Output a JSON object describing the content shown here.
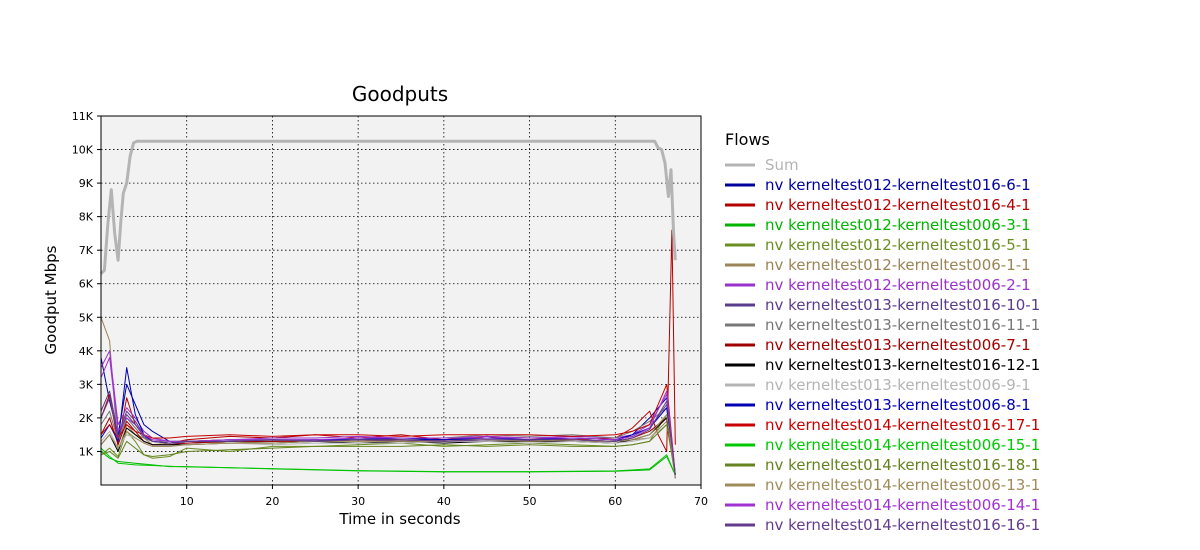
{
  "chart_data": {
    "type": "line",
    "title": "Goodputs",
    "xlabel": "Time in seconds",
    "ylabel": "Goodput Mbps",
    "xlim": [
      0,
      70
    ],
    "ylim": [
      0,
      11000
    ],
    "xticks": [
      10,
      20,
      30,
      40,
      50,
      60,
      70
    ],
    "yticks": [
      {
        "value": 1000,
        "label": "1K"
      },
      {
        "value": 2000,
        "label": "2K"
      },
      {
        "value": 3000,
        "label": "3K"
      },
      {
        "value": 4000,
        "label": "4K"
      },
      {
        "value": 5000,
        "label": "5K"
      },
      {
        "value": 6000,
        "label": "6K"
      },
      {
        "value": 7000,
        "label": "7K"
      },
      {
        "value": 8000,
        "label": "8K"
      },
      {
        "value": 9000,
        "label": "9K"
      },
      {
        "value": 10000,
        "label": "10K"
      },
      {
        "value": 11000,
        "label": "11K"
      }
    ],
    "grid": true,
    "legend_title": "Flows",
    "legend_position": "right",
    "series": [
      {
        "name": "Sum",
        "color": "#b4b4b4",
        "x": [
          0,
          0.4,
          0.8,
          1.2,
          1.6,
          2.0,
          2.3,
          2.6,
          3.0,
          3.4,
          3.8,
          4.2,
          5,
          10,
          20,
          30,
          40,
          50,
          60,
          63,
          64.6,
          65,
          65.4,
          65.8,
          66.2,
          66.5,
          66.8,
          67
        ],
        "y": [
          6300,
          6400,
          7800,
          8800,
          7500,
          6700,
          7800,
          8700,
          9000,
          9800,
          10200,
          10250,
          10250,
          10250,
          10250,
          10250,
          10250,
          10250,
          10250,
          10250,
          10250,
          10050,
          10000,
          9600,
          8600,
          9400,
          7500,
          6700
        ]
      },
      {
        "name": "nv kerneltest012-kerneltest016-6-1",
        "color": "#00009e",
        "x": [
          0,
          1,
          2,
          3,
          4,
          5,
          6,
          8,
          10,
          15,
          20,
          25,
          30,
          35,
          40,
          45,
          50,
          55,
          60,
          62,
          64,
          66,
          67
        ],
        "y": [
          3800,
          2500,
          1500,
          3000,
          2400,
          1800,
          1600,
          1300,
          1300,
          1350,
          1350,
          1300,
          1400,
          1350,
          1350,
          1450,
          1300,
          1350,
          1300,
          1500,
          2000,
          2600,
          200
        ]
      },
      {
        "name": "nv kerneltest012-kerneltest016-4-1",
        "color": "#b40000",
        "x": [
          0,
          1,
          2,
          3,
          4,
          5,
          6,
          8,
          10,
          15,
          20,
          25,
          30,
          35,
          40,
          45,
          50,
          55,
          60,
          62,
          64,
          65,
          66,
          66.6,
          67
        ],
        "y": [
          2000,
          2700,
          1200,
          2600,
          1800,
          1500,
          1300,
          1250,
          1350,
          1450,
          1400,
          1500,
          1400,
          1500,
          1350,
          1450,
          1400,
          1350,
          1400,
          1700,
          2200,
          1500,
          1000,
          7600,
          1200
        ]
      },
      {
        "name": "nv kerneltest012-kerneltest006-3-1",
        "color": "#00b400",
        "x": [
          0,
          1,
          2,
          4,
          6,
          8,
          10,
          20,
          30,
          40,
          50,
          60,
          64,
          66,
          67
        ],
        "y": [
          1000,
          800,
          700,
          650,
          600,
          550,
          550,
          480,
          420,
          390,
          390,
          410,
          450,
          850,
          300
        ]
      },
      {
        "name": "nv kerneltest012-kerneltest016-5-1",
        "color": "#6b8e23",
        "x": [
          0,
          1,
          2,
          3,
          4,
          5,
          6,
          8,
          10,
          15,
          20,
          25,
          30,
          35,
          40,
          45,
          50,
          55,
          60,
          62,
          64,
          66,
          67
        ],
        "y": [
          900,
          1100,
          850,
          1600,
          1300,
          900,
          800,
          850,
          1100,
          1000,
          1150,
          1150,
          1200,
          1250,
          1150,
          1200,
          1250,
          1200,
          1150,
          1200,
          1300,
          2100,
          300
        ]
      },
      {
        "name": "nv kerneltest012-kerneltest006-1-1",
        "color": "#9b8455",
        "x": [
          0,
          1,
          2,
          3,
          4,
          5,
          6,
          8,
          10,
          15,
          20,
          25,
          30,
          35,
          40,
          45,
          50,
          55,
          60,
          62,
          64,
          66,
          67
        ],
        "y": [
          5000,
          4300,
          1000,
          1800,
          1500,
          1400,
          1200,
          1250,
          1300,
          1250,
          1300,
          1350,
          1300,
          1350,
          1300,
          1400,
          1350,
          1300,
          1300,
          1350,
          1400,
          1900,
          200
        ]
      },
      {
        "name": "nv kerneltest012-kerneltest006-2-1",
        "color": "#9932cc",
        "x": [
          0,
          1,
          2,
          3,
          4,
          5,
          6,
          8,
          10,
          15,
          20,
          25,
          30,
          35,
          40,
          45,
          50,
          55,
          60,
          62,
          64,
          66,
          67
        ],
        "y": [
          3500,
          4000,
          1800,
          2300,
          2000,
          1600,
          1400,
          1300,
          1300,
          1350,
          1400,
          1400,
          1450,
          1400,
          1400,
          1450,
          1400,
          1450,
          1400,
          1500,
          1800,
          2700,
          300
        ]
      },
      {
        "name": "nv kerneltest013-kerneltest016-10-1",
        "color": "#5a3c8c",
        "x": [
          0,
          1,
          2,
          3,
          4,
          5,
          6,
          8,
          10,
          15,
          20,
          25,
          30,
          35,
          40,
          45,
          50,
          55,
          60,
          62,
          64,
          66,
          67
        ],
        "y": [
          2200,
          2800,
          1500,
          2200,
          1900,
          1500,
          1300,
          1250,
          1250,
          1300,
          1300,
          1350,
          1350,
          1300,
          1350,
          1350,
          1350,
          1400,
          1350,
          1450,
          1700,
          2400,
          300
        ]
      },
      {
        "name": "nv kerneltest013-kerneltest016-11-1",
        "color": "#787878",
        "x": [
          0,
          1,
          2,
          3,
          4,
          5,
          6,
          8,
          10,
          15,
          20,
          25,
          30,
          35,
          40,
          45,
          50,
          55,
          60,
          62,
          64,
          66,
          67
        ],
        "y": [
          1800,
          2200,
          1300,
          2000,
          1700,
          1400,
          1300,
          1300,
          1300,
          1350,
          1300,
          1350,
          1350,
          1400,
          1400,
          1500,
          1450,
          1500,
          1400,
          1600,
          1900,
          2300,
          300
        ]
      },
      {
        "name": "nv kerneltest013-kerneltest006-7-1",
        "color": "#a00000",
        "x": [
          0,
          1,
          2,
          3,
          4,
          5,
          6,
          8,
          10,
          15,
          20,
          25,
          30,
          35,
          40,
          45,
          50,
          55,
          60,
          62,
          64,
          66,
          67
        ],
        "y": [
          1500,
          2000,
          1200,
          1900,
          1600,
          1300,
          1200,
          1200,
          1250,
          1300,
          1300,
          1300,
          1350,
          1350,
          1300,
          1350,
          1300,
          1350,
          1300,
          1400,
          1600,
          2000,
          300
        ]
      },
      {
        "name": "nv kerneltest013-kerneltest016-12-1",
        "color": "#000000",
        "x": [
          0,
          1,
          2,
          3,
          4,
          5,
          6,
          8,
          10,
          15,
          20,
          25,
          30,
          35,
          40,
          45,
          50,
          55,
          60,
          62,
          64,
          66,
          67
        ],
        "y": [
          1200,
          1500,
          1000,
          1700,
          1500,
          1300,
          1200,
          1200,
          1200,
          1250,
          1250,
          1300,
          1250,
          1300,
          1250,
          1300,
          1300,
          1300,
          1250,
          1350,
          1500,
          2000,
          300
        ]
      },
      {
        "name": "nv kerneltest013-kerneltest006-9-1",
        "color": "#b4b4b4",
        "x": [
          0,
          1,
          2,
          3,
          4,
          5,
          6,
          8,
          10,
          15,
          20,
          25,
          30,
          35,
          40,
          45,
          50,
          55,
          60,
          62,
          64,
          66,
          67
        ],
        "y": [
          1300,
          1600,
          1100,
          1500,
          1400,
          1250,
          1150,
          1150,
          1200,
          1250,
          1200,
          1250,
          1250,
          1250,
          1300,
          1300,
          1250,
          1300,
          1250,
          1300,
          1400,
          1800,
          300
        ]
      },
      {
        "name": "nv kerneltest013-kerneltest006-8-1",
        "color": "#0000b4",
        "x": [
          0,
          1,
          2,
          3,
          4,
          5,
          6,
          8,
          10,
          15,
          20,
          25,
          30,
          35,
          40,
          45,
          50,
          55,
          60,
          62,
          64,
          66,
          67
        ],
        "y": [
          1400,
          1800,
          1300,
          3500,
          2100,
          1500,
          1300,
          1250,
          1300,
          1300,
          1350,
          1350,
          1350,
          1400,
          1350,
          1400,
          1350,
          1400,
          1350,
          1500,
          1700,
          2300,
          300
        ]
      },
      {
        "name": "nv kerneltest014-kerneltest016-17-1",
        "color": "#c80000",
        "x": [
          0,
          1,
          2,
          3,
          4,
          5,
          6,
          8,
          10,
          15,
          20,
          25,
          30,
          35,
          40,
          45,
          50,
          55,
          60,
          62,
          64,
          66,
          67
        ],
        "y": [
          1500,
          1800,
          1400,
          1800,
          1600,
          1500,
          1400,
          1400,
          1450,
          1500,
          1450,
          1500,
          1500,
          1450,
          1500,
          1500,
          1500,
          1450,
          1500,
          1600,
          1800,
          3000,
          300
        ]
      },
      {
        "name": "nv kerneltest014-kerneltest006-15-1",
        "color": "#00c800",
        "x": [
          0,
          1,
          2,
          4,
          6,
          8,
          10,
          20,
          30,
          40,
          50,
          60,
          64,
          66,
          67
        ],
        "y": [
          1100,
          850,
          650,
          600,
          580,
          560,
          540,
          490,
          430,
          400,
          400,
          420,
          480,
          900,
          300
        ]
      },
      {
        "name": "nv kerneltest014-kerneltest016-18-1",
        "color": "#64821e",
        "x": [
          0,
          1,
          2,
          3,
          4,
          5,
          6,
          8,
          10,
          15,
          20,
          25,
          30,
          35,
          40,
          45,
          50,
          55,
          60,
          62,
          64,
          66,
          67
        ],
        "y": [
          900,
          1000,
          800,
          1300,
          1100,
          900,
          850,
          900,
          1000,
          1050,
          1100,
          1150,
          1150,
          1150,
          1200,
          1150,
          1200,
          1150,
          1150,
          1200,
          1300,
          1800,
          300
        ]
      },
      {
        "name": "nv kerneltest014-kerneltest006-13-1",
        "color": "#a08c5a",
        "x": [
          0,
          1,
          2,
          3,
          4,
          5,
          6,
          8,
          10,
          15,
          20,
          25,
          30,
          35,
          40,
          45,
          50,
          55,
          60,
          62,
          64,
          66,
          67
        ],
        "y": [
          1200,
          1500,
          1100,
          1600,
          1400,
          1250,
          1150,
          1150,
          1200,
          1250,
          1250,
          1300,
          1300,
          1300,
          1300,
          1350,
          1300,
          1350,
          1300,
          1350,
          1500,
          2100,
          300
        ]
      },
      {
        "name": "nv kerneltest014-kerneltest006-14-1",
        "color": "#a032d2",
        "x": [
          0,
          1,
          2,
          3,
          4,
          5,
          6,
          8,
          10,
          15,
          20,
          25,
          30,
          35,
          40,
          45,
          50,
          55,
          60,
          62,
          64,
          66,
          67
        ],
        "y": [
          3200,
          3800,
          1600,
          2000,
          1800,
          1500,
          1350,
          1300,
          1300,
          1350,
          1350,
          1350,
          1400,
          1400,
          1400,
          1400,
          1400,
          1400,
          1350,
          1450,
          1700,
          2800,
          300
        ]
      },
      {
        "name": "nv kerneltest014-kerneltest016-16-1",
        "color": "#643c8c",
        "x": [
          0,
          1,
          2,
          3,
          4,
          5,
          6,
          8,
          10,
          15,
          20,
          25,
          30,
          35,
          40,
          45,
          50,
          55,
          60,
          62,
          64,
          66,
          67
        ],
        "y": [
          2000,
          2600,
          1400,
          2100,
          1800,
          1450,
          1300,
          1250,
          1300,
          1300,
          1350,
          1300,
          1350,
          1350,
          1300,
          1350,
          1350,
          1350,
          1300,
          1400,
          1650,
          2500,
          300
        ]
      }
    ]
  }
}
